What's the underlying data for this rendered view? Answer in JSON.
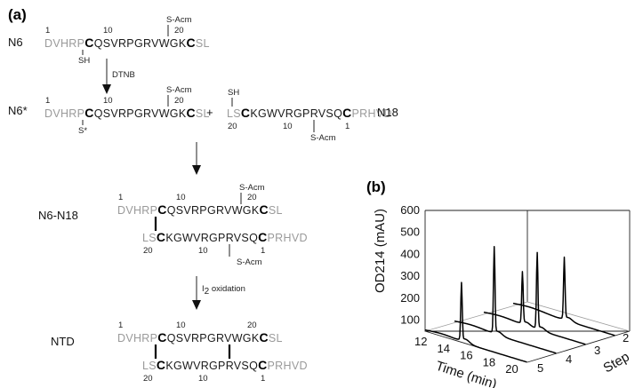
{
  "panel_a": {
    "label": "(a)",
    "rows": {
      "n6": {
        "name": "N6",
        "seq_pre": "DVHRP",
        "cys1": "C",
        "seq_mid": "QSVRPGRVWGK",
        "cys2": "C",
        "seq_post": "SL",
        "num_1": "1",
        "num_10": "10",
        "num_20": "20",
        "top_mod": "S-Acm",
        "bottom_mod": "SH"
      },
      "step_dtnb": {
        "reagent": "DTNB"
      },
      "n6star": {
        "name": "N6*",
        "seq_pre": "DVHRP",
        "cys1": "C",
        "seq_mid": "QSVRPGRVWGK",
        "cys2": "C",
        "seq_post": "SL",
        "num_1": "1",
        "num_10": "10",
        "num_20": "20",
        "top_mod": "S-Acm",
        "bottom_mod": "S*"
      },
      "plus": "+",
      "n18": {
        "name": "N18",
        "seq_pre": "LS",
        "cys1": "C",
        "seq_mid": "KGWVRGPRVSQ",
        "cys2": "C",
        "seq_post": "PRHVD",
        "num_20": "20",
        "num_10": "10",
        "num_1": "1",
        "top_mod": "SH",
        "bottom_mod": "S-Acm"
      },
      "n6n18": {
        "name": "N6-N18",
        "top": {
          "seq_pre": "DVHRP",
          "cys1": "C",
          "seq_mid": "QSVRPGRVWGK",
          "cys2": "C",
          "seq_post": "SL",
          "num_1": "1",
          "num_10": "10",
          "num_20": "20",
          "top_mod": "S-Acm"
        },
        "bottom": {
          "seq_pre": "LS",
          "cys1": "C",
          "seq_mid": "KGWVRGPRVSQ",
          "cys2": "C",
          "seq_post": "PRHVD",
          "num_20": "20",
          "num_10": "10",
          "num_1": "1",
          "bottom_mod": "S-Acm"
        }
      },
      "step_i2": {
        "reagent_main": "I",
        "reagent_sub": "2",
        "reagent_rest": " oxidation"
      },
      "ntd": {
        "name": "NTD",
        "top": {
          "seq_pre": "DVHRP",
          "cys1": "C",
          "seq_mid": "QSVRPGRVWGK",
          "cys2": "C",
          "seq_post": "SL",
          "num_1": "1",
          "num_10": "10",
          "num_20": "20"
        },
        "bottom": {
          "seq_pre": "LS",
          "cys1": "C",
          "seq_mid": "KGWVRGPRVSQ",
          "cys2": "C",
          "seq_post": "PRHVD",
          "num_20": "20",
          "num_10": "10",
          "num_1": "1"
        }
      }
    }
  },
  "panel_b": {
    "label": "(b)",
    "chart_data": {
      "type": "line",
      "view": "3d-waterfall",
      "ylabel": "OD214 (mAU)",
      "xlabel": "Time (min)",
      "zlabel": "Step",
      "y_ticks": [
        "600",
        "500",
        "400",
        "300",
        "200",
        "100"
      ],
      "x_ticks": [
        "12",
        "14",
        "16",
        "18",
        "20"
      ],
      "z_ticks": [
        "2",
        "3",
        "4",
        "5"
      ],
      "xlim": [
        12,
        21
      ],
      "ylim": [
        50,
        600
      ],
      "series": [
        {
          "step": 5,
          "peaks": [
            {
              "time": 15.2,
              "height": 330
            }
          ]
        },
        {
          "step": 4,
          "peaks": [
            {
              "time": 15.5,
              "height": 470
            }
          ]
        },
        {
          "step": 3,
          "peaks": [
            {
              "time": 15.4,
              "height": 300
            },
            {
              "time": 16.7,
              "height": 420
            }
          ]
        },
        {
          "step": 2,
          "peaks": [
            {
              "time": 16.5,
              "height": 350
            }
          ]
        }
      ]
    }
  }
}
